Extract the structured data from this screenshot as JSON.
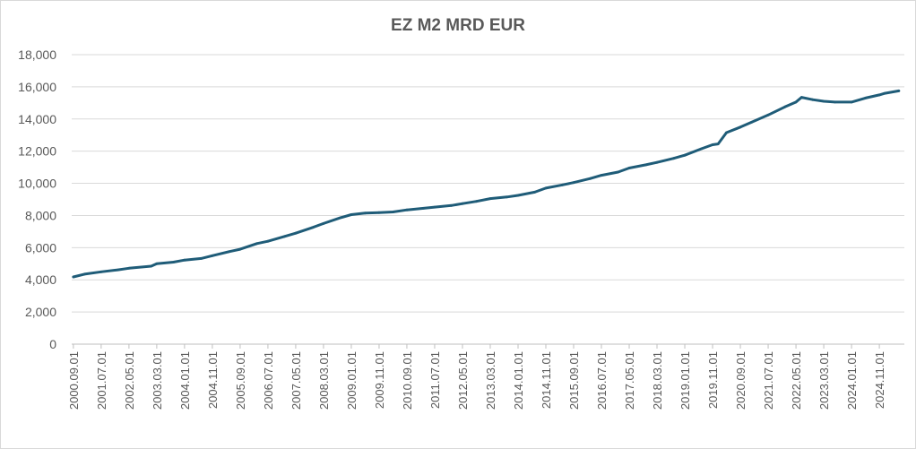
{
  "chart_data": {
    "type": "line",
    "title": "EZ M2 MRD EUR",
    "xlabel": "",
    "ylabel": "",
    "ylim": [
      0,
      18000
    ],
    "y_ticks": [
      "0",
      "2,000",
      "4,000",
      "6,000",
      "8,000",
      "10,000",
      "12,000",
      "14,000",
      "16,000",
      "18,000"
    ],
    "x_tick_labels": [
      "2000.09.01",
      "2001.07.01",
      "2002.05.01",
      "2003.03.01",
      "2004.01.01",
      "2004.11.01",
      "2005.09.01",
      "2006.07.01",
      "2007.05.01",
      "2008.03.01",
      "2009.01.01",
      "2009.11.01",
      "2010.09.01",
      "2011.07.01",
      "2012.05.01",
      "2013.03.01",
      "2014.01.01",
      "2014.11.01",
      "2015.09.01",
      "2016.07.01",
      "2017.05.01",
      "2018.03.01",
      "2019.01.01",
      "2019.11.01",
      "2020.09.01",
      "2021.07.01",
      "2022.05.01",
      "2023.03.01",
      "2024.01.01",
      "2024.11.01"
    ],
    "grid": true,
    "legend": "none",
    "line_color": "#1f5c78",
    "series": [
      {
        "x": [
          "2000.09.01",
          "2001.01.01",
          "2001.07.01",
          "2002.01.01",
          "2002.05.01",
          "2003.01.01",
          "2003.03.01",
          "2003.09.01",
          "2004.01.01",
          "2004.07.01",
          "2004.11.01",
          "2005.05.01",
          "2005.09.01",
          "2006.03.01",
          "2006.07.01",
          "2007.01.01",
          "2007.05.01",
          "2007.11.01",
          "2008.03.01",
          "2008.09.01",
          "2009.01.01",
          "2009.06.01",
          "2009.11.01",
          "2010.04.01",
          "2010.09.01",
          "2011.03.01",
          "2011.07.01",
          "2012.01.01",
          "2012.05.01",
          "2012.10.01",
          "2013.03.01",
          "2013.09.01",
          "2014.01.01",
          "2014.07.01",
          "2014.11.01",
          "2015.05.01",
          "2015.09.01",
          "2016.03.01",
          "2016.07.01",
          "2017.01.01",
          "2017.05.01",
          "2017.11.01",
          "2018.03.01",
          "2018.09.01",
          "2019.01.01",
          "2019.07.01",
          "2019.11.01",
          "2020.01.01",
          "2020.04.01",
          "2020.09.01",
          "2021.01.01",
          "2021.07.01",
          "2022.01.01",
          "2022.05.01",
          "2022.07.01",
          "2022.11.01",
          "2023.03.01",
          "2023.07.01",
          "2024.01.01",
          "2024.06.01",
          "2024.11.01",
          "2025.01.01",
          "2025.06.01"
        ],
        "values": [
          4180,
          4350,
          4500,
          4620,
          4720,
          4850,
          5000,
          5100,
          5230,
          5330,
          5500,
          5750,
          5900,
          6250,
          6400,
          6700,
          6900,
          7250,
          7500,
          7850,
          8050,
          8150,
          8180,
          8220,
          8350,
          8450,
          8520,
          8620,
          8740,
          8880,
          9050,
          9150,
          9250,
          9450,
          9700,
          9900,
          10050,
          10300,
          10500,
          10700,
          10950,
          11150,
          11300,
          11550,
          11750,
          12150,
          12400,
          12450,
          13150,
          13500,
          13800,
          14250,
          14750,
          15050,
          15350,
          15200,
          15100,
          15050,
          15050,
          15300,
          15500,
          15600,
          15750
        ]
      }
    ]
  }
}
